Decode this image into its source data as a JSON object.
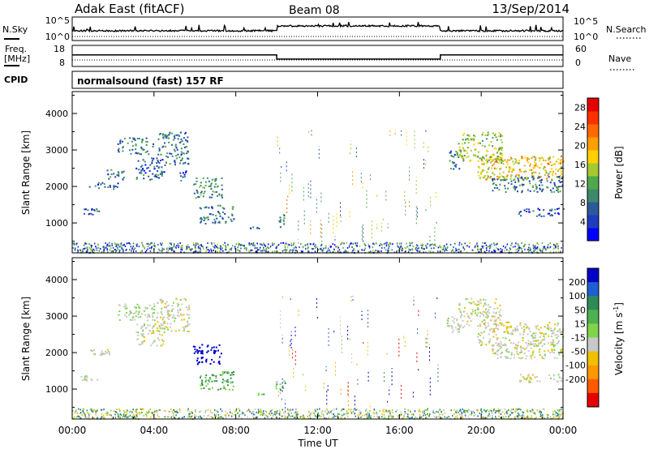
{
  "header": {
    "station": "Adak East (fitACF)",
    "beam": "Beam 08",
    "date": "13/Sep/2014"
  },
  "strip": {
    "nsky_label": "N.Sky",
    "nsky_ticks": [
      "10^5",
      "10^0"
    ],
    "nsearch_label": "N.Search",
    "nsearch_ticks": [
      "10^5",
      "10^0"
    ],
    "freq_label_1": "Freq.",
    "freq_label_2": "[MHz]",
    "freq_ticks": [
      "18",
      "8"
    ],
    "nave_label": "Nave",
    "nave_ticks": [
      "60",
      "0"
    ],
    "cpid_label": "CPID",
    "mode_text": "normalsound (fast) 157 RF"
  },
  "chart_data": [
    {
      "type": "heatmap",
      "title": "",
      "xlabel": "",
      "ylabel": "Slant Range [km]",
      "xlim": [
        0,
        24
      ],
      "ylim": [
        180,
        4600
      ],
      "x_ticks": [],
      "y_ticks": [
        "1000",
        "2000",
        "3000",
        "4000"
      ],
      "y_tick_values": [
        1000,
        2000,
        3000,
        4000
      ],
      "colorbar": {
        "label": "Power [dB]",
        "ticks": [
          "4",
          "8",
          "12",
          "16",
          "20",
          "24",
          "28"
        ],
        "tick_values": [
          4,
          8,
          12,
          16,
          20,
          24,
          28
        ],
        "range": [
          0,
          30
        ],
        "colors": [
          "#0000ff",
          "#1e3cbe",
          "#2a5a9a",
          "#3c8a6e",
          "#4fa84a",
          "#a6c832",
          "#ffd000",
          "#ff9f00",
          "#ff6a00",
          "#ff3000",
          "#e60000"
        ]
      },
      "echo_regions": [
        {
          "t": [
            0.4,
            1.3
          ],
          "r": [
            1250,
            1420
          ],
          "v": 6
        },
        {
          "t": [
            0.8,
            2.3
          ],
          "r": [
            1950,
            2120
          ],
          "v": 6
        },
        {
          "t": [
            1.6,
            2.5
          ],
          "r": [
            2200,
            2500
          ],
          "v": 7
        },
        {
          "t": [
            2.2,
            4.0
          ],
          "r": [
            2900,
            3350
          ],
          "v": 8
        },
        {
          "t": [
            3.1,
            4.5
          ],
          "r": [
            2200,
            2800
          ],
          "v": 7
        },
        {
          "t": [
            4.1,
            5.7
          ],
          "r": [
            2600,
            3500
          ],
          "v": 8
        },
        {
          "t": [
            5.2,
            5.6
          ],
          "r": [
            2150,
            2450
          ],
          "v": 6
        },
        {
          "t": [
            5.9,
            7.3
          ],
          "r": [
            1700,
            2250
          ],
          "v": 10
        },
        {
          "t": [
            6.2,
            7.9
          ],
          "r": [
            1000,
            1500
          ],
          "v": 8
        },
        {
          "t": [
            8.6,
            9.4
          ],
          "r": [
            850,
            950
          ],
          "v": 6
        },
        {
          "t": [
            9.9,
            10.4
          ],
          "r": [
            900,
            1250
          ],
          "v": 9
        },
        {
          "t": [
            18.3,
            19.0
          ],
          "r": [
            2500,
            3000
          ],
          "v": 8
        },
        {
          "t": [
            18.8,
            21.0
          ],
          "r": [
            2700,
            3500
          ],
          "v": 14
        },
        {
          "t": [
            19.8,
            24.0
          ],
          "r": [
            2200,
            2850
          ],
          "v": 18
        },
        {
          "t": [
            20.5,
            24.0
          ],
          "r": [
            1850,
            2300
          ],
          "v": 8
        },
        {
          "t": [
            21.8,
            24.0
          ],
          "r": [
            1200,
            1420
          ],
          "v": 6
        }
      ],
      "noise_band": {
        "r": [
          200,
          480
        ],
        "v": 8
      },
      "vertical_streaks": {
        "t": [
          10.0,
          18.0
        ],
        "r": [
          300,
          3550
        ],
        "v": 14
      }
    },
    {
      "type": "heatmap",
      "title": "",
      "xlabel": "Time UT",
      "ylabel": "Slant Range [km]",
      "xlim": [
        0,
        24
      ],
      "ylim": [
        180,
        4600
      ],
      "x_ticks": [
        "00:00",
        "04:00",
        "08:00",
        "12:00",
        "16:00",
        "20:00",
        "00:00"
      ],
      "x_tick_values": [
        0,
        4,
        8,
        12,
        16,
        20,
        24
      ],
      "y_ticks": [
        "1000",
        "2000",
        "3000",
        "4000"
      ],
      "y_tick_values": [
        1000,
        2000,
        3000,
        4000
      ],
      "colorbar": {
        "label_main": "Velocity [m s",
        "label_sup": "-1",
        "label_end": "]",
        "ticks": [
          "200",
          "100",
          "50",
          "15",
          "-15",
          "-50",
          "-100",
          "-200"
        ],
        "colors": [
          "#0000c8",
          "#1e5fd2",
          "#2e8b57",
          "#4fb04f",
          "#7fd44a",
          "#c8c8c8",
          "#f0c000",
          "#ff9800",
          "#ff5a00",
          "#e60000"
        ]
      },
      "echo_regions": [
        {
          "t": [
            0.4,
            1.3
          ],
          "r": [
            1250,
            1420
          ],
          "v": 0
        },
        {
          "t": [
            0.8,
            2.3
          ],
          "r": [
            1950,
            2120
          ],
          "v": 0
        },
        {
          "t": [
            2.2,
            4.0
          ],
          "r": [
            2900,
            3350
          ],
          "v": 10
        },
        {
          "t": [
            3.1,
            4.5
          ],
          "r": [
            2200,
            2800
          ],
          "v": 0
        },
        {
          "t": [
            4.1,
            5.7
          ],
          "r": [
            2600,
            3500
          ],
          "v": 0
        },
        {
          "t": [
            5.9,
            7.3
          ],
          "r": [
            1700,
            2250
          ],
          "v": 180
        },
        {
          "t": [
            6.2,
            7.9
          ],
          "r": [
            1000,
            1500
          ],
          "v": 40
        },
        {
          "t": [
            8.6,
            9.4
          ],
          "r": [
            850,
            950
          ],
          "v": 30
        },
        {
          "t": [
            9.9,
            10.4
          ],
          "r": [
            900,
            1250
          ],
          "v": 20
        },
        {
          "t": [
            18.3,
            19.0
          ],
          "r": [
            2500,
            3000
          ],
          "v": 10
        },
        {
          "t": [
            18.8,
            21.0
          ],
          "r": [
            2700,
            3500
          ],
          "v": 0
        },
        {
          "t": [
            19.8,
            24.0
          ],
          "r": [
            2200,
            2850
          ],
          "v": 0
        },
        {
          "t": [
            20.5,
            24.0
          ],
          "r": [
            1850,
            2300
          ],
          "v": 0
        },
        {
          "t": [
            21.8,
            24.0
          ],
          "r": [
            1200,
            1420
          ],
          "v": 0
        }
      ],
      "noise_band": {
        "r": [
          200,
          480
        ],
        "v": 20
      },
      "vertical_streaks": {
        "t": [
          10.0,
          18.0
        ],
        "r": [
          300,
          3550
        ],
        "v": 60
      }
    }
  ],
  "freq_steps": [
    {
      "t": [
        0,
        10.0
      ],
      "f": 13.5
    },
    {
      "t": [
        10.0,
        18.0
      ],
      "f": 11.5
    },
    {
      "t": [
        18.0,
        24.0
      ],
      "f": 13.5
    }
  ]
}
